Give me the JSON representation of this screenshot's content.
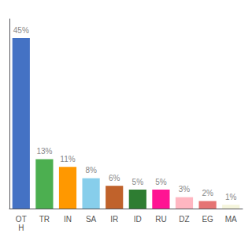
{
  "chart_data": {
    "type": "bar",
    "categories": [
      "OT\nH",
      "TR",
      "IN",
      "SA",
      "IR",
      "ID",
      "RU",
      "DZ",
      "EG",
      "MA"
    ],
    "values": [
      45,
      13,
      11,
      8,
      6,
      5,
      5,
      3,
      2,
      1
    ],
    "value_labels": [
      "45%",
      "13%",
      "11%",
      "8%",
      "6%",
      "5%",
      "5%",
      "3%",
      "2%",
      "1%"
    ],
    "colors": [
      "#4472c4",
      "#4caf50",
      "#ff9800",
      "#87ceeb",
      "#c0622b",
      "#2e7d32",
      "#ff1493",
      "#ffb6c1",
      "#e57373",
      "#f5f5dc"
    ],
    "ylim": [
      0,
      50
    ],
    "data_labels": true,
    "tick_labels": "x",
    "grid": false
  }
}
